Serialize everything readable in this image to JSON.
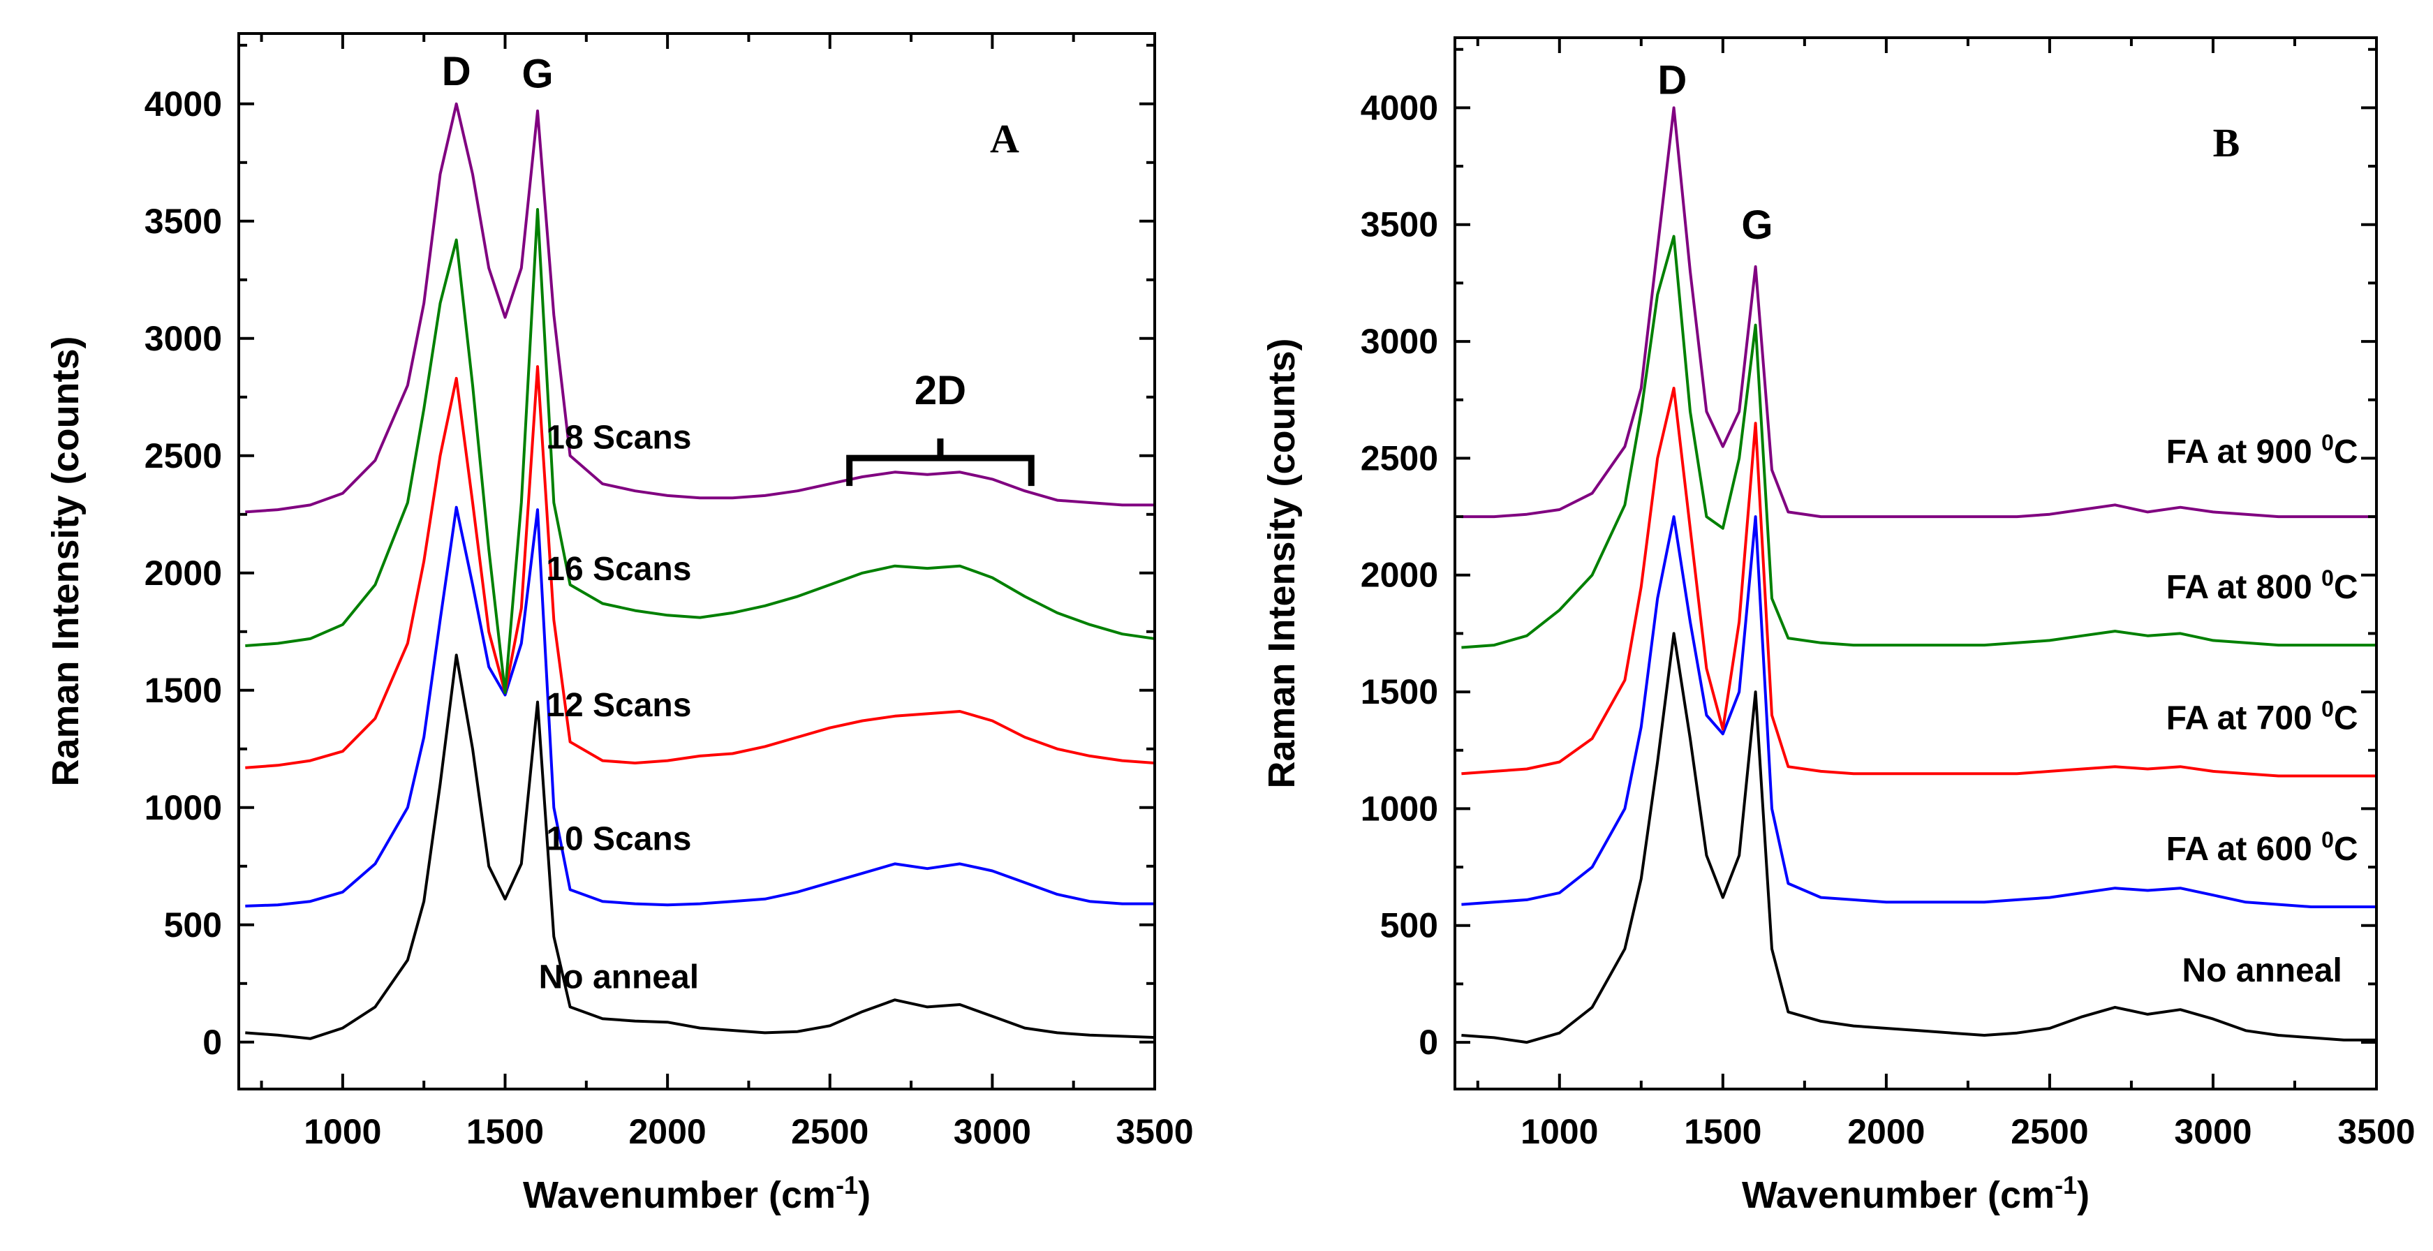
{
  "chart_data": [
    {
      "id": "A",
      "type": "line",
      "panel_label": "A",
      "xlabel": "Wavenumber (cm-1)",
      "xlabel_main": "Wavenumber (cm",
      "xlabel_sup": "-1",
      "xlabel_close": ")",
      "ylabel": "Raman Intensity (counts)",
      "xlim": [
        680,
        3500
      ],
      "ylim": [
        -200,
        4300
      ],
      "xticks": [
        1000,
        1500,
        2000,
        2500,
        3000,
        3500
      ],
      "yticks": [
        0,
        500,
        1000,
        1500,
        2000,
        2500,
        3000,
        3500,
        4000
      ],
      "peak_labels": [
        {
          "text": "D",
          "x": 1350,
          "y": 4080
        },
        {
          "text": "G",
          "x": 1600,
          "y": 4070
        }
      ],
      "annotation": {
        "text": "2D",
        "x_range": [
          2560,
          3120
        ],
        "y": 2490,
        "text_y": 2720
      },
      "series": [
        {
          "name": "No anneal",
          "color": "#000000",
          "baseline": 40,
          "end": 20,
          "d": 1650,
          "g": 1450,
          "valley": 610,
          "twoD": 160,
          "label_x": 1850,
          "label_y": 230,
          "x": [
            700,
            800,
            900,
            1000,
            1100,
            1200,
            1250,
            1300,
            1350,
            1400,
            1450,
            1500,
            1550,
            1600,
            1650,
            1700,
            1800,
            1900,
            2000,
            2100,
            2200,
            2300,
            2400,
            2500,
            2600,
            2700,
            2800,
            2900,
            3000,
            3100,
            3200,
            3300,
            3400,
            3500
          ],
          "y": [
            40,
            30,
            15,
            60,
            150,
            350,
            600,
            1100,
            1650,
            1250,
            750,
            610,
            760,
            1450,
            450,
            150,
            100,
            90,
            85,
            60,
            50,
            40,
            45,
            70,
            130,
            180,
            150,
            160,
            110,
            60,
            40,
            30,
            25,
            20
          ]
        },
        {
          "name": "10 Scans",
          "color": "#0000ff",
          "baseline": 580,
          "end": 590,
          "d": 2280,
          "g": 2270,
          "valley": 1480,
          "twoD": 760,
          "label_x": 1850,
          "label_y": 820,
          "x": [
            700,
            800,
            900,
            1000,
            1100,
            1200,
            1250,
            1300,
            1350,
            1400,
            1450,
            1500,
            1550,
            1600,
            1650,
            1700,
            1800,
            1900,
            2000,
            2100,
            2200,
            2300,
            2400,
            2500,
            2600,
            2700,
            2800,
            2900,
            3000,
            3100,
            3200,
            3300,
            3400,
            3500
          ],
          "y": [
            580,
            585,
            600,
            640,
            760,
            1000,
            1300,
            1800,
            2280,
            1950,
            1600,
            1480,
            1700,
            2270,
            1000,
            650,
            600,
            590,
            585,
            590,
            600,
            610,
            640,
            680,
            720,
            760,
            740,
            760,
            730,
            680,
            630,
            600,
            590,
            590
          ]
        },
        {
          "name": "12 Scans",
          "color": "#ff0000",
          "baseline": 1170,
          "end": 1190,
          "d": 2830,
          "g": 2880,
          "valley": 1490,
          "twoD": 1400,
          "label_x": 1850,
          "label_y": 1390,
          "x": [
            700,
            800,
            900,
            1000,
            1100,
            1200,
            1250,
            1300,
            1350,
            1400,
            1450,
            1500,
            1550,
            1600,
            1650,
            1700,
            1800,
            1900,
            2000,
            2100,
            2200,
            2300,
            2400,
            2500,
            2600,
            2700,
            2800,
            2900,
            3000,
            3100,
            3200,
            3300,
            3400,
            3500
          ],
          "y": [
            1170,
            1180,
            1200,
            1240,
            1380,
            1700,
            2050,
            2500,
            2830,
            2300,
            1750,
            1490,
            1850,
            2880,
            1800,
            1280,
            1200,
            1190,
            1200,
            1220,
            1230,
            1260,
            1300,
            1340,
            1370,
            1390,
            1400,
            1410,
            1370,
            1300,
            1250,
            1220,
            1200,
            1190
          ]
        },
        {
          "name": "16 Scans",
          "color": "#008000",
          "baseline": 1690,
          "end": 1720,
          "d": 3420,
          "g": 3550,
          "valley": 1490,
          "twoD": 2030,
          "label_x": 1850,
          "label_y": 1970,
          "x": [
            700,
            800,
            900,
            1000,
            1100,
            1200,
            1250,
            1300,
            1350,
            1400,
            1450,
            1500,
            1550,
            1600,
            1650,
            1700,
            1800,
            1900,
            2000,
            2100,
            2200,
            2300,
            2400,
            2500,
            2600,
            2700,
            2800,
            2900,
            3000,
            3100,
            3200,
            3300,
            3400,
            3500
          ],
          "y": [
            1690,
            1700,
            1720,
            1780,
            1950,
            2300,
            2700,
            3150,
            3420,
            2800,
            2100,
            1490,
            2300,
            3550,
            2300,
            1950,
            1870,
            1840,
            1820,
            1810,
            1830,
            1860,
            1900,
            1950,
            2000,
            2030,
            2020,
            2030,
            1980,
            1900,
            1830,
            1780,
            1740,
            1720
          ]
        },
        {
          "name": "18 Scans",
          "color": "#800080",
          "baseline": 2260,
          "end": 2290,
          "d": 4000,
          "g": 3970,
          "valley": 3090,
          "twoD": 2430,
          "label_x": 1850,
          "label_y": 2530,
          "x": [
            700,
            800,
            900,
            1000,
            1100,
            1200,
            1250,
            1300,
            1350,
            1400,
            1450,
            1500,
            1550,
            1600,
            1650,
            1700,
            1800,
            1900,
            2000,
            2100,
            2200,
            2300,
            2400,
            2500,
            2600,
            2700,
            2800,
            2900,
            3000,
            3100,
            3200,
            3300,
            3400,
            3500
          ],
          "y": [
            2260,
            2270,
            2290,
            2340,
            2480,
            2800,
            3150,
            3700,
            4000,
            3700,
            3300,
            3090,
            3300,
            3970,
            3100,
            2500,
            2380,
            2350,
            2330,
            2320,
            2320,
            2330,
            2350,
            2380,
            2410,
            2430,
            2420,
            2430,
            2400,
            2350,
            2310,
            2300,
            2290,
            2290
          ]
        }
      ]
    },
    {
      "id": "B",
      "type": "line",
      "panel_label": "B",
      "xlabel": "Wavenumber (cm-1)",
      "xlabel_main": "Wavenumber (cm",
      "xlabel_sup": "-1",
      "xlabel_close": ")",
      "ylabel": "Raman Intensity (counts)",
      "xlim": [
        680,
        3500
      ],
      "ylim": [
        -200,
        4300
      ],
      "xticks": [
        1000,
        1500,
        2000,
        2500,
        3000,
        3500
      ],
      "yticks": [
        0,
        500,
        1000,
        1500,
        2000,
        2500,
        3000,
        3500,
        4000
      ],
      "peak_labels": [
        {
          "text": "D",
          "x": 1345,
          "y": 4060
        },
        {
          "text": "G",
          "x": 1605,
          "y": 3440
        }
      ],
      "series": [
        {
          "name": "No anneal",
          "color": "#000000",
          "label": "No anneal",
          "label_x": 3150,
          "label_y": 260,
          "x": [
            700,
            800,
            900,
            1000,
            1100,
            1200,
            1250,
            1300,
            1350,
            1400,
            1450,
            1500,
            1550,
            1600,
            1650,
            1700,
            1800,
            1900,
            2000,
            2100,
            2200,
            2300,
            2400,
            2500,
            2600,
            2700,
            2800,
            2900,
            3000,
            3100,
            3200,
            3300,
            3400,
            3500
          ],
          "y": [
            30,
            20,
            0,
            40,
            150,
            400,
            700,
            1200,
            1750,
            1300,
            800,
            620,
            800,
            1500,
            400,
            130,
            90,
            70,
            60,
            50,
            40,
            30,
            40,
            60,
            110,
            150,
            120,
            140,
            100,
            50,
            30,
            20,
            10,
            10
          ]
        },
        {
          "name": "FA at 600 °C",
          "color": "#0000ff",
          "label": "FA at 600 ",
          "label_sup": "0",
          "label_end": "C",
          "label_x": 3150,
          "label_y": 780,
          "x": [
            700,
            800,
            900,
            1000,
            1100,
            1200,
            1250,
            1300,
            1350,
            1400,
            1450,
            1500,
            1550,
            1600,
            1650,
            1700,
            1800,
            1900,
            2000,
            2100,
            2200,
            2300,
            2400,
            2500,
            2600,
            2700,
            2800,
            2900,
            3000,
            3100,
            3200,
            3300,
            3400,
            3500
          ],
          "y": [
            590,
            600,
            610,
            640,
            750,
            1000,
            1350,
            1900,
            2250,
            1800,
            1400,
            1320,
            1500,
            2250,
            1000,
            680,
            620,
            610,
            600,
            600,
            600,
            600,
            610,
            620,
            640,
            660,
            650,
            660,
            630,
            600,
            590,
            580,
            580,
            580
          ]
        },
        {
          "name": "FA at 700 °C",
          "color": "#ff0000",
          "label": "FA at 700 ",
          "label_sup": "0",
          "label_end": "C",
          "label_x": 3150,
          "label_y": 1340,
          "x": [
            700,
            800,
            900,
            1000,
            1100,
            1200,
            1250,
            1300,
            1350,
            1400,
            1450,
            1500,
            1550,
            1600,
            1650,
            1700,
            1800,
            1900,
            2000,
            2100,
            2200,
            2300,
            2400,
            2500,
            2600,
            2700,
            2800,
            2900,
            3000,
            3100,
            3200,
            3300,
            3400,
            3500
          ],
          "y": [
            1150,
            1160,
            1170,
            1200,
            1300,
            1550,
            1950,
            2500,
            2800,
            2200,
            1600,
            1340,
            1800,
            2650,
            1400,
            1180,
            1160,
            1150,
            1150,
            1150,
            1150,
            1150,
            1150,
            1160,
            1170,
            1180,
            1170,
            1180,
            1160,
            1150,
            1140,
            1140,
            1140,
            1140
          ]
        },
        {
          "name": "FA at 800 °C",
          "color": "#008000",
          "label": "FA at 800 ",
          "label_sup": "0",
          "label_end": "C",
          "label_x": 3150,
          "label_y": 1900,
          "x": [
            700,
            800,
            900,
            1000,
            1100,
            1200,
            1250,
            1300,
            1350,
            1400,
            1450,
            1500,
            1550,
            1600,
            1650,
            1700,
            1800,
            1900,
            2000,
            2100,
            2200,
            2300,
            2400,
            2500,
            2600,
            2700,
            2800,
            2900,
            3000,
            3100,
            3200,
            3300,
            3400,
            3500
          ],
          "y": [
            1690,
            1700,
            1740,
            1850,
            2000,
            2300,
            2700,
            3200,
            3450,
            2700,
            2250,
            2200,
            2500,
            3070,
            1900,
            1730,
            1710,
            1700,
            1700,
            1700,
            1700,
            1700,
            1710,
            1720,
            1740,
            1760,
            1740,
            1750,
            1720,
            1710,
            1700,
            1700,
            1700,
            1700
          ]
        },
        {
          "name": "FA at 900 °C",
          "color": "#800080",
          "label": "FA at 900 ",
          "label_sup": "0",
          "label_end": "C",
          "label_x": 3150,
          "label_y": 2480,
          "x": [
            700,
            800,
            900,
            1000,
            1100,
            1200,
            1250,
            1300,
            1350,
            1400,
            1450,
            1500,
            1550,
            1600,
            1650,
            1700,
            1800,
            1900,
            2000,
            2100,
            2200,
            2300,
            2400,
            2500,
            2600,
            2700,
            2800,
            2900,
            3000,
            3100,
            3200,
            3300,
            3400,
            3500
          ],
          "y": [
            2250,
            2250,
            2260,
            2280,
            2350,
            2550,
            2800,
            3400,
            4000,
            3300,
            2700,
            2550,
            2700,
            3320,
            2450,
            2270,
            2250,
            2250,
            2250,
            2250,
            2250,
            2250,
            2250,
            2260,
            2280,
            2300,
            2270,
            2290,
            2270,
            2260,
            2250,
            2250,
            2250,
            2250
          ]
        }
      ]
    }
  ]
}
